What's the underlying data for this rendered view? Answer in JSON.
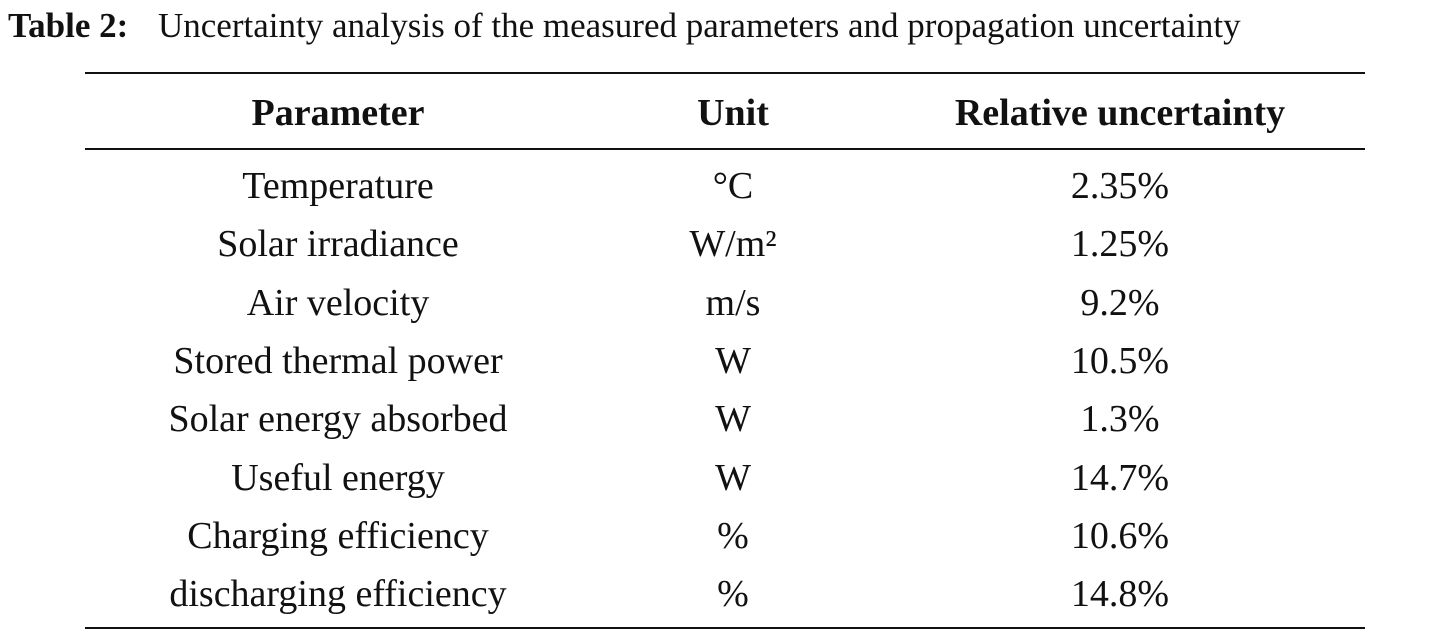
{
  "caption": {
    "label": "Table 2:",
    "text": "Uncertainty analysis of the measured parameters and propagation uncertainty"
  },
  "table": {
    "header": [
      "Parameter",
      "Unit",
      "Relative uncertainty"
    ],
    "rows": [
      [
        "Temperature",
        "°C",
        "2.35%"
      ],
      [
        "Solar irradiance",
        "W/m²",
        "1.25%"
      ],
      [
        "Air velocity",
        "m/s",
        "9.2%"
      ],
      [
        "Stored thermal power",
        "W",
        "10.5%"
      ],
      [
        "Solar energy absorbed",
        "W",
        "1.3%"
      ],
      [
        "Useful energy",
        "W",
        "14.7%"
      ],
      [
        "Charging efficiency",
        "%",
        "10.6%"
      ],
      [
        "discharging efficiency",
        "%",
        "14.8%"
      ]
    ]
  }
}
